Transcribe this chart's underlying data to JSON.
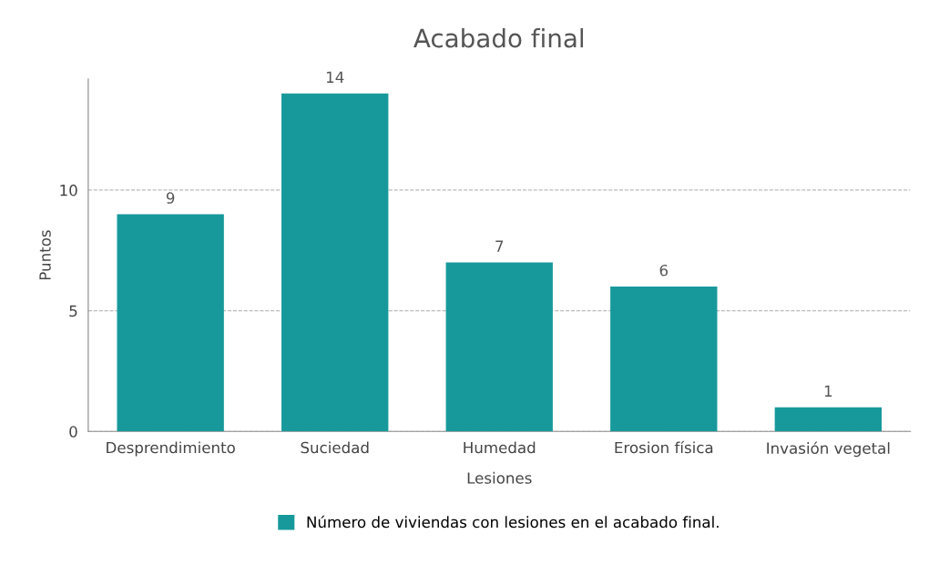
{
  "chart_data": {
    "type": "bar",
    "title": "Acabado final",
    "xlabel": "Lesiones",
    "ylabel": "Puntos",
    "categories": [
      "Desprendimiento",
      "Suciedad",
      "Humedad",
      "Erosion física",
      "Invasión vegetal"
    ],
    "series": [
      {
        "name": "Número de viviendas con lesiones en el acabado final.",
        "color": "#17999b",
        "values": [
          9,
          14,
          7,
          6,
          1
        ]
      }
    ],
    "ylim": [
      0,
      14.6
    ],
    "yticks": [
      0,
      5,
      10
    ],
    "grid": "y",
    "legend": "bottom",
    "data_labels": true
  }
}
